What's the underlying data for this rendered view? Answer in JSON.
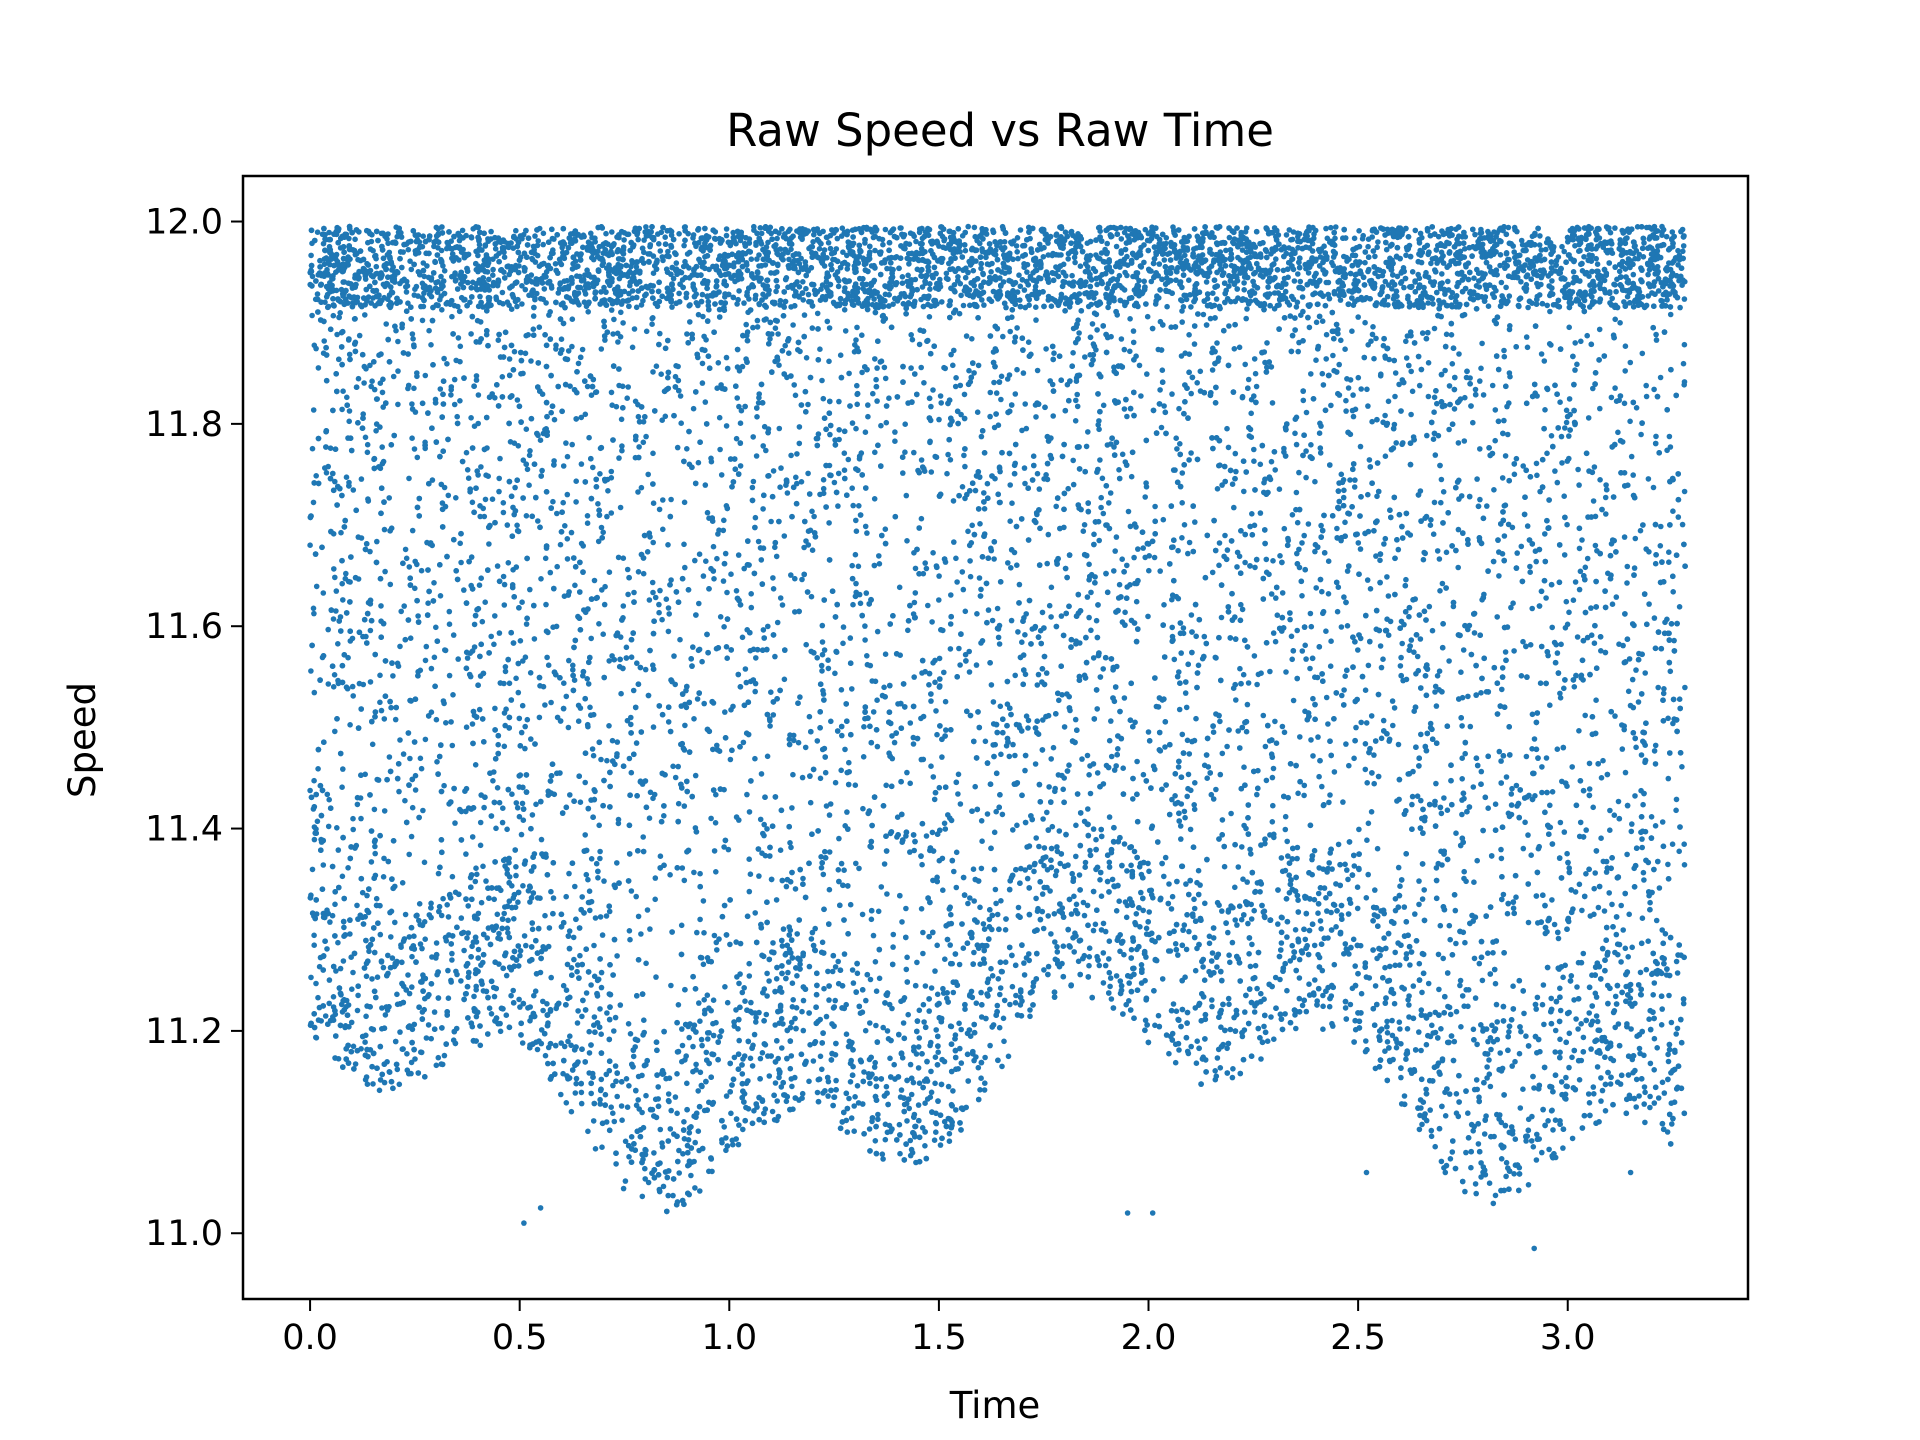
{
  "chart_data": {
    "type": "scatter",
    "title": "Raw Speed vs Raw Time",
    "xlabel": "Time",
    "ylabel": "Speed",
    "xlim": [
      -0.16,
      3.43
    ],
    "ylim": [
      10.935,
      12.045
    ],
    "xticks": [
      0.0,
      0.5,
      1.0,
      1.5,
      2.0,
      2.5,
      3.0
    ],
    "xtick_labels": [
      "0.0",
      "0.5",
      "1.0",
      "1.5",
      "2.0",
      "2.5",
      "3.0"
    ],
    "yticks": [
      11.0,
      11.2,
      11.4,
      11.6,
      11.8,
      12.0
    ],
    "ytick_labels": [
      "11.0",
      "11.2",
      "11.4",
      "11.6",
      "11.8",
      "12.0"
    ],
    "grid": false,
    "legend": "none",
    "series": [
      {
        "color": "#1f77b4",
        "x_range": [
          0.0,
          3.28
        ],
        "y_range": [
          10.985,
          11.995
        ],
        "approx_point_count": 16000,
        "notable_points": [
          [
            2.92,
            10.985
          ],
          [
            0.51,
            11.01
          ],
          [
            0.55,
            11.025
          ],
          [
            1.95,
            11.02
          ],
          [
            2.01,
            11.02
          ],
          [
            2.52,
            11.06
          ],
          [
            3.15,
            11.06
          ],
          [
            3.27,
            11.99
          ]
        ]
      }
    ]
  }
}
